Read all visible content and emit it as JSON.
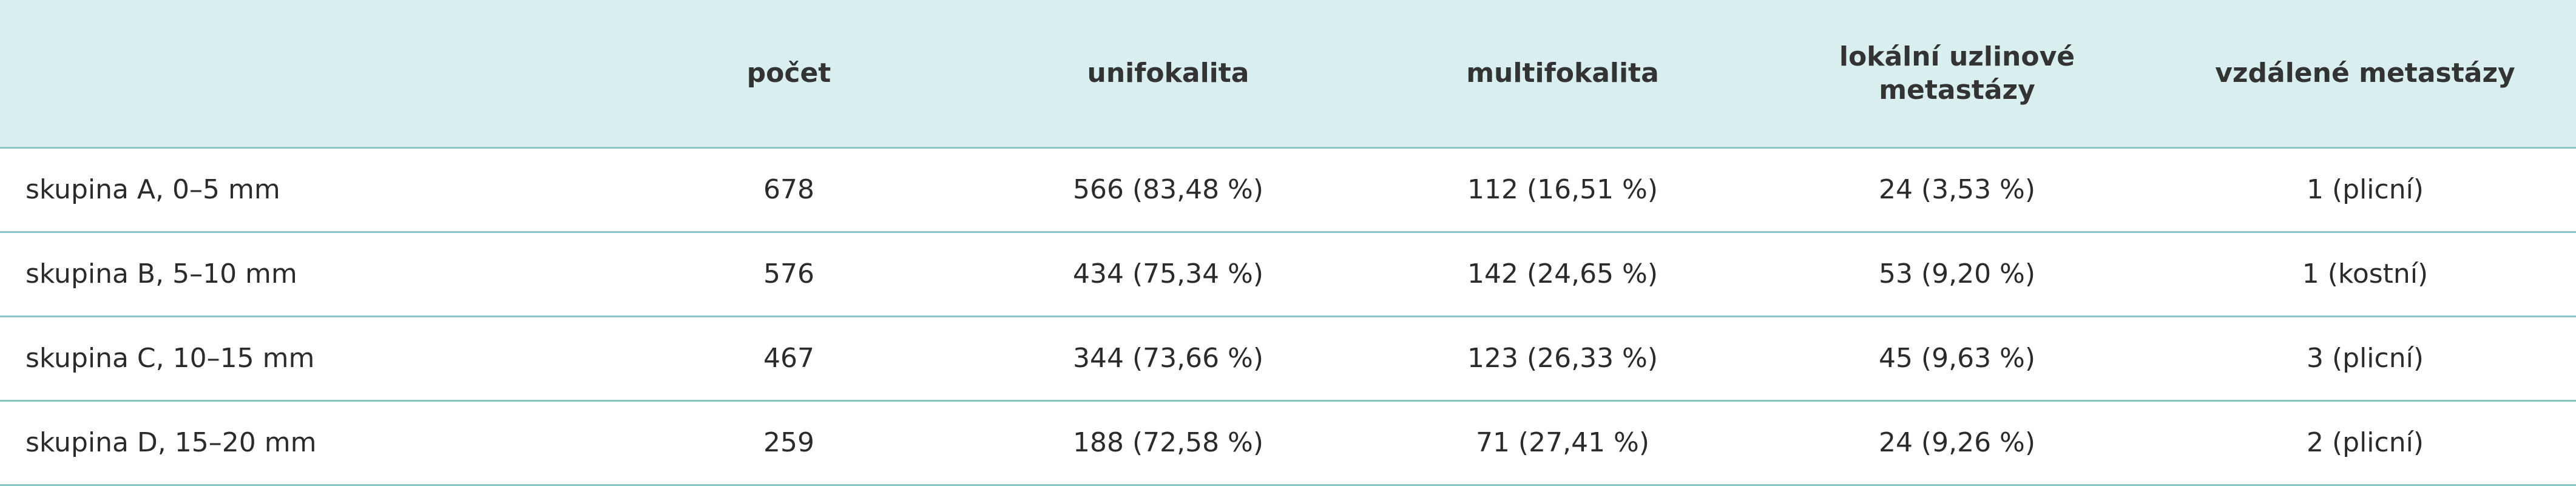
{
  "table": {
    "header": [
      "počet",
      "unifokalita",
      "multifokalita",
      "lokální uzlinové metastázy",
      "vzdálené metastázy"
    ],
    "rows": [
      [
        "skupina A, 0–5 mm",
        "678",
        "566 (83,48 %)",
        "112 (16,51 %)",
        "24 (3,53 %)",
        "1 (plicní)"
      ],
      [
        "skupina B, 5–10 mm",
        "576",
        "434 (75,34 %)",
        "142 (24,65 %)",
        "53 (9,20 %)",
        "1 (kostní)"
      ],
      [
        "skupina C, 10–15 mm",
        "467",
        "344 (73,66 %)",
        "123 (26,33 %)",
        "45 (9,63 %)",
        "3 (plicní)"
      ],
      [
        "skupina D, 15–20 mm",
        "259",
        "188 (72,58 %)",
        "71 (27,41 %)",
        "24 (9,26 %)",
        "2 (plicní)"
      ]
    ]
  }
}
